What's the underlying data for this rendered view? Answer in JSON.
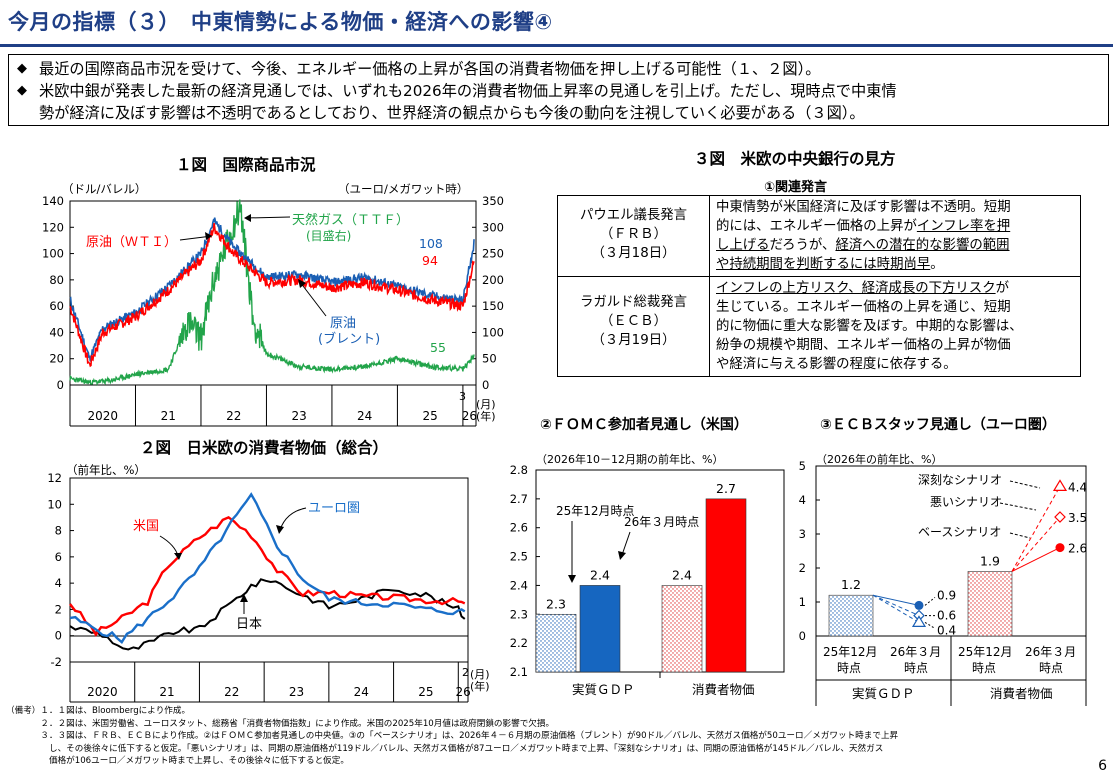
{
  "header": {
    "title": "今月の指標（３）　中東情勢による物価・経済への影響④"
  },
  "bullets": [
    {
      "mark": "◆",
      "text": "最近の国際商品市況を受けて、今後、エネルギー価格の上昇が各国の消費者物価を押し上げる可能性（１、２図）。"
    },
    {
      "mark": "◆",
      "line1": "米欧中銀が発表した最新の経済見通しでは、いずれも2026年の消費者物価上昇率の見通しを引上げ。ただし、現時点で中東情",
      "line2": "勢が経済に及ぼす影響は不透明であるとしており、世界経済の観点からも今後の動向を注視していく必要がある（３図）。"
    }
  ],
  "fig1": {
    "title": "１図　国際商品市況",
    "left_unit": "（ドル/バレル）",
    "right_unit": "（ユーロ/メガワット時）",
    "left_ticks": [
      "140",
      "120",
      "100",
      "80",
      "60",
      "40",
      "20",
      "0"
    ],
    "right_ticks": [
      "350",
      "300",
      "250",
      "200",
      "150",
      "100",
      "50",
      "0"
    ],
    "years": [
      "2020",
      "21",
      "22",
      "23",
      "24",
      "25",
      "26"
    ],
    "month_label": "3",
    "month_unit": "(月)",
    "year_unit": "(年)",
    "label_wti": "原油（ＷＴＩ）",
    "label_ttf": "天然ガス（ＴＴＦ）",
    "label_ttf2": "(目盛右)",
    "label_brent": "原油",
    "label_brent2": "(ブレント)",
    "end_brent": "108",
    "end_wti": "94",
    "end_ttf": "55",
    "colors": {
      "wti": "#ff0000",
      "brent": "#1a5fb4",
      "ttf": "#22a44a"
    }
  },
  "fig2": {
    "title": "２図　日米欧の消費者物価（総合）",
    "unit": "（前年比、%）",
    "ticks": [
      "12",
      "10",
      "8",
      "6",
      "4",
      "2",
      "0",
      "-2"
    ],
    "years": [
      "2020",
      "21",
      "22",
      "23",
      "24",
      "25",
      "26"
    ],
    "month_label": "2",
    "month_unit": "(月)",
    "year_unit": "(年)",
    "label_us": "米国",
    "label_eu": "ユーロ圏",
    "label_jp": "日本"
  },
  "fig3": {
    "title": "３図　米欧の中央銀行の見方",
    "sub1": "①関連発言",
    "rows": [
      {
        "who1": "パウエル議長発言",
        "who2": "（ＦＲＢ）",
        "who3": "（３月18日）",
        "t1": "中東情勢が米国経済に及ぼす影響は不透明。短期",
        "t2a": "的には、エネルギー価格の上昇が",
        "t2b": "インフレ率を押",
        "t3a": "し上げる",
        "t3b": "だろうが、",
        "t3c": "経済への潜在的な影響の範囲",
        "t4": "や持続期間を判断するには時期尚早",
        "t4b": "。"
      },
      {
        "who1": "ラガルド総裁発言",
        "who2": "（ＥＣＢ）",
        "who3": "（３月19日）",
        "t1a": "インフレの上方リスク、経済成長の下方リスク",
        "t1b": "が",
        "t2": "生じている。エネルギー価格の上昇を通じ、短期",
        "t3": "的に物価に重大な影響を及ぼす。中期的な影響は、",
        "t4": "紛争の規模や期間、エネルギー価格の上昇が物価",
        "t5": "や経済に与える影響の程度に依存する。"
      }
    ],
    "fomc": {
      "title": "②ＦＯＭＣ参加者見通し（米国）",
      "unit": "（2026年10－12月期の前年比、%）",
      "ticks": [
        "2.8",
        "2.7",
        "2.6",
        "2.5",
        "2.4",
        "2.3",
        "2.2",
        "2.1"
      ],
      "ann_dec": "25年12月時点",
      "ann_mar": "26年３月時点",
      "cat_gdp": "実質ＧＤＰ",
      "cat_cpi": "消費者物価"
    },
    "ecb": {
      "title": "③ＥＣＢスタッフ見通し（ユーロ圏）",
      "unit": "（2026年の前年比、%）",
      "ticks": [
        "5",
        "4",
        "3",
        "2",
        "1",
        "0"
      ],
      "sev": "深刻なシナリオ",
      "bad": "悪いシナリオ",
      "base": "ベースシナリオ",
      "x1": "25年12月",
      "x1b": "時点",
      "x2": "26年３月",
      "x2b": "時点",
      "cat_gdp": "実質ＧＤＰ",
      "cat_cpi": "消費者物価"
    }
  },
  "chart_data": [
    {
      "type": "line",
      "title": "１図　国際商品市況",
      "series": [
        {
          "name": "原油（ＷＴＩ）",
          "axis": "left",
          "x": [
            2020.0,
            2020.3,
            2020.5,
            2021.0,
            2021.5,
            2022.0,
            2022.2,
            2022.5,
            2023.0,
            2023.5,
            2024.0,
            2024.5,
            2025.0,
            2025.5,
            2026.0,
            2026.17
          ],
          "values": [
            60,
            15,
            40,
            52,
            72,
            95,
            120,
            100,
            78,
            80,
            74,
            78,
            72,
            65,
            60,
            94
          ]
        },
        {
          "name": "原油（ブレント）",
          "axis": "left",
          "x": [
            2020.0,
            2020.3,
            2020.5,
            2021.0,
            2021.5,
            2022.0,
            2022.2,
            2022.5,
            2023.0,
            2023.5,
            2024.0,
            2024.5,
            2025.0,
            2025.5,
            2026.0,
            2026.17
          ],
          "values": [
            65,
            20,
            43,
            55,
            75,
            100,
            125,
            105,
            82,
            84,
            78,
            82,
            75,
            68,
            64,
            108
          ]
        },
        {
          "name": "天然ガス（ＴＴＦ）",
          "axis": "right",
          "x": [
            2020.0,
            2020.3,
            2020.6,
            2021.0,
            2021.5,
            2021.8,
            2022.0,
            2022.2,
            2022.6,
            2022.8,
            2023.0,
            2023.5,
            2024.0,
            2024.5,
            2025.0,
            2025.5,
            2026.0,
            2026.17
          ],
          "values": [
            12,
            5,
            8,
            20,
            30,
            120,
            90,
            200,
            340,
            120,
            60,
            35,
            30,
            35,
            50,
            35,
            30,
            55
          ]
        }
      ],
      "ylim_left": [
        0,
        140
      ],
      "ylim_right": [
        0,
        350
      ]
    },
    {
      "type": "line",
      "title": "２図　日米欧の消費者物価（総合）",
      "ylabel": "前年比、%",
      "series": [
        {
          "name": "米国",
          "x": [
            2020.0,
            2020.4,
            2020.8,
            2021.2,
            2021.5,
            2022.0,
            2022.45,
            2022.8,
            2023.2,
            2023.6,
            2024.0,
            2024.5,
            2025.0,
            2025.5,
            2026.0,
            2026.1
          ],
          "values": [
            2.5,
            0.2,
            1.3,
            2.6,
            5.3,
            7.5,
            9.0,
            7.7,
            5.0,
            3.2,
            3.3,
            3.0,
            2.9,
            2.7,
            2.6,
            2.4
          ]
        },
        {
          "name": "ユーロ圏",
          "x": [
            2020.0,
            2020.5,
            2020.8,
            2021.2,
            2021.6,
            2022.0,
            2022.5,
            2022.8,
            2023.2,
            2023.6,
            2024.0,
            2024.5,
            2025.0,
            2025.5,
            2026.0,
            2026.1
          ],
          "values": [
            1.4,
            0.3,
            -0.3,
            1.3,
            3.0,
            5.1,
            8.6,
            10.6,
            6.9,
            4.3,
            2.8,
            2.5,
            2.4,
            2.0,
            1.8,
            1.9
          ]
        },
        {
          "name": "日本",
          "x": [
            2020.0,
            2020.5,
            2020.9,
            2021.3,
            2021.6,
            2022.0,
            2022.5,
            2022.8,
            2023.1,
            2023.5,
            2024.0,
            2024.5,
            2025.0,
            2025.5,
            2026.0,
            2026.1
          ],
          "values": [
            0.7,
            0.1,
            -1.2,
            -0.4,
            0.3,
            0.5,
            2.5,
            3.8,
            4.3,
            3.3,
            2.2,
            2.8,
            3.6,
            3.1,
            2.0,
            1.3
          ]
        }
      ],
      "ylim": [
        -2,
        12
      ]
    },
    {
      "type": "bar",
      "title": "②ＦＯＭＣ参加者見通し（米国）",
      "categories": [
        "実質ＧＤＰ",
        "消費者物価"
      ],
      "series": [
        {
          "name": "25年12月時点",
          "values": [
            2.3,
            2.4
          ]
        },
        {
          "name": "26年３月時点",
          "values": [
            2.4,
            2.7
          ]
        }
      ],
      "ylim": [
        2.1,
        2.8
      ]
    },
    {
      "type": "bar",
      "title": "③ＥＣＢスタッフ見通し（ユーロ圏）",
      "categories": [
        "実質ＧＤＰ",
        "消費者物価"
      ],
      "series": [
        {
          "name": "25年12月時点",
          "values": [
            1.2,
            1.9
          ]
        },
        {
          "name": "26年３月時点（ベースシナリオ）",
          "values": [
            0.9,
            2.6
          ]
        },
        {
          "name": "26年３月時点（悪いシナリオ）",
          "values": [
            0.6,
            3.5
          ]
        },
        {
          "name": "26年３月時点（深刻なシナリオ）",
          "values": [
            0.4,
            4.4
          ]
        }
      ],
      "ylim": [
        0,
        5
      ]
    }
  ],
  "notes": [
    "（備考）１．１図は、Bloombergにより作成。",
    "　　　　２．２図は、米国労働省、ユーロスタット、総務省「消費者物価指数」により作成。米国の2025年10月値は政府閉鎖の影響で欠損。",
    "　　　　３．３図は、ＦＲＢ、ＥＣＢにより作成。②はＦＯＭＣ参加者見通しの中央値。③の「ベースシナリオ」は、2026年４－６月期の原油価格（ブレント）が90ドル／バレル、天然ガス価格が50ユーロ／メガワット時まで上昇",
    "　　　　　し、その後徐々に低下すると仮定。「悪いシナリオ」は、同期の原油価格が119ドル／バレル、天然ガス価格が87ユーロ／メガワット時まで上昇、「深刻なシナリオ」は、同期の原油価格が145ドル／バレル、天然ガス",
    "　　　　　価格が106ユーロ／メガワット時まで上昇し、その後徐々に低下すると仮定。"
  ],
  "page_number": "6"
}
